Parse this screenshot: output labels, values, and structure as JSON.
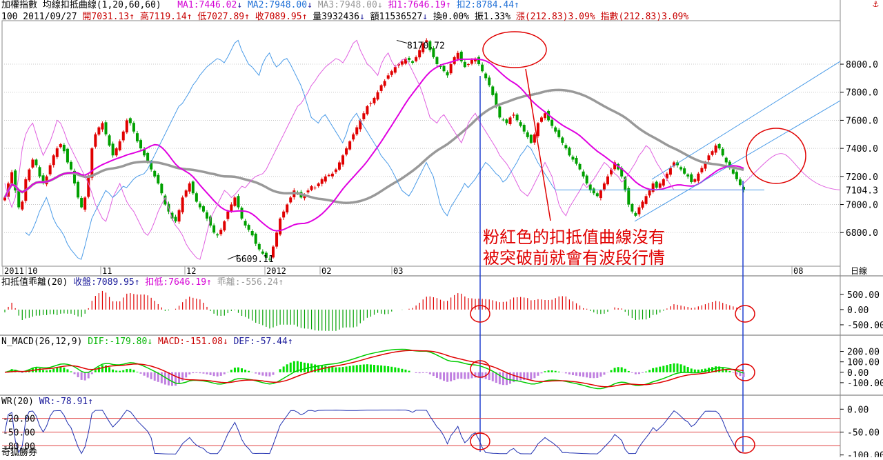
{
  "header": {
    "title": "加權指數 均線扣抵曲線(1,20,60,60)",
    "ma1": "MA1:7446.02",
    "ma2": "MA2:7948.00",
    "ma3": "MA3:7948.00",
    "deduct1": "扣1:7646.19",
    "deduct2": "扣2:8784.44",
    "line2_prefix": "100 2011/09/27",
    "open": "開7031.13",
    "high": "高7119.14",
    "low": "低7027.89",
    "close": "收7089.95",
    "volume": "量3932436",
    "amount": "額11536527",
    "turnover": "換0.00%",
    "amplitude": "振1.33%",
    "change": "漲(212.83)3.09%",
    "index_change": "指數(212.83)3.09%",
    "anchor_icon": "anchor-icon"
  },
  "panels": {
    "deviation": {
      "label": "扣抵值乖離(20)",
      "close": "收盤:7089.95",
      "deduct_low": "扣低:7646.19",
      "deviation": "乖離:-556.24"
    },
    "macd": {
      "label": "N_MACD(26,12,9)",
      "dif": "DIF:-179.80",
      "macd": "MACD:-151.08",
      "def": "DEF:-57.44"
    },
    "wr": {
      "label": "WR(20)",
      "wr": "WR:-78.91"
    }
  },
  "watermark": "奇狐勝券",
  "annotation": {
    "line1": "粉紅色的扣抵值曲線沒有",
    "line2": "被突破前就會有波段行情"
  },
  "colors": {
    "up": "#e00000",
    "down": "#00a000",
    "ma_mag": "#e000e0",
    "ma_grey": "#999999",
    "deduct_blue": "#4a9be8",
    "deduct_pink": "#e060e0",
    "dif": "#00cc00",
    "macd": "#e00000",
    "grid": "#b0b0b0",
    "annot": "#e00000",
    "vline": "#2040d0"
  },
  "chart_data": [
    {
      "type": "candlestick",
      "title": "加權指數 均線扣抵曲線(1,20,60,60)",
      "y_ticks": [
        "8000.0",
        "7800.0",
        "7600.0",
        "7400.0",
        "7200.0",
        "7000.0",
        "6800.0"
      ],
      "ylim": [
        6580,
        8300
      ],
      "last_price_label": "7104.3",
      "x_tick_labels": [
        "2011",
        "10",
        "11",
        "12",
        "2012",
        "02",
        "03",
        "08"
      ],
      "period_label": "日線",
      "peak_label": "8170.72",
      "trough_label": "6609.11",
      "close_series": [
        7050,
        7150,
        7230,
        7100,
        6980,
        7020,
        7180,
        7250,
        7320,
        7280,
        7200,
        7150,
        7200,
        7280,
        7350,
        7400,
        7430,
        7380,
        7300,
        7250,
        7150,
        7050,
        6980,
        7050,
        7200,
        7400,
        7500,
        7550,
        7580,
        7500,
        7420,
        7350,
        7400,
        7450,
        7520,
        7600,
        7580,
        7520,
        7450,
        7400,
        7350,
        7300,
        7250,
        7200,
        7150,
        7080,
        7000,
        6950,
        6900,
        6880,
        6960,
        7050,
        7100,
        7150,
        7080,
        7020,
        6980,
        6950,
        6900,
        6850,
        6800,
        6780,
        6820,
        6880,
        6950,
        7000,
        7050,
        6980,
        6900,
        6850,
        6820,
        6780,
        6720,
        6680,
        6650,
        6620,
        6609,
        6700,
        6800,
        6900,
        6950,
        7000,
        7050,
        7100,
        7080,
        7050,
        7070,
        7100,
        7130,
        7120,
        7150,
        7180,
        7200,
        7210,
        7220,
        7250,
        7300,
        7350,
        7400,
        7450,
        7500,
        7550,
        7600,
        7650,
        7700,
        7720,
        7760,
        7800,
        7850,
        7880,
        7920,
        7950,
        7980,
        8000,
        8020,
        8040,
        8030,
        8010,
        8050,
        8100,
        8150,
        8170,
        8100,
        8050,
        8000,
        7980,
        7950,
        7920,
        8000,
        8050,
        8080,
        8020,
        7980,
        8000,
        8030,
        8040,
        8000,
        7950,
        7900,
        7850,
        7780,
        7700,
        7620,
        7600,
        7580,
        7620,
        7640,
        7600,
        7560,
        7520,
        7480,
        7440,
        7500,
        7580,
        7620,
        7650,
        7600,
        7560,
        7520,
        7480,
        7440,
        7400,
        7350,
        7320,
        7290,
        7250,
        7200,
        7150,
        7100,
        7080,
        7060,
        7100,
        7150,
        7200,
        7250,
        7300,
        7250,
        7200,
        7100,
        7000,
        6950,
        6920,
        6980,
        7020,
        7060,
        7100,
        7150,
        7120,
        7150,
        7180,
        7220,
        7260,
        7300,
        7280,
        7250,
        7220,
        7200,
        7160,
        7180,
        7220,
        7260,
        7300,
        7350,
        7380,
        7420,
        7400,
        7350,
        7300,
        7260,
        7220,
        7180,
        7140,
        7104
      ]
    },
    {
      "type": "bar",
      "title": "扣抵值乖離(20)",
      "y_ticks": [
        "500.00",
        "0.00",
        "-500.00"
      ],
      "ylim": [
        -750,
        700
      ]
    },
    {
      "type": "line",
      "title": "N_MACD(26,12,9)",
      "y_ticks": [
        "200.00",
        "100.00",
        "0.00",
        "-100.00"
      ],
      "ylim": [
        -200,
        250
      ]
    },
    {
      "type": "line",
      "title": "WR(20)",
      "y_ticks": [
        "0.00",
        "-50.00",
        "-100.00"
      ],
      "ref_labels": [
        "-20.00",
        "-50.00",
        "-80.00"
      ],
      "ylim": [
        -105,
        5
      ]
    }
  ]
}
